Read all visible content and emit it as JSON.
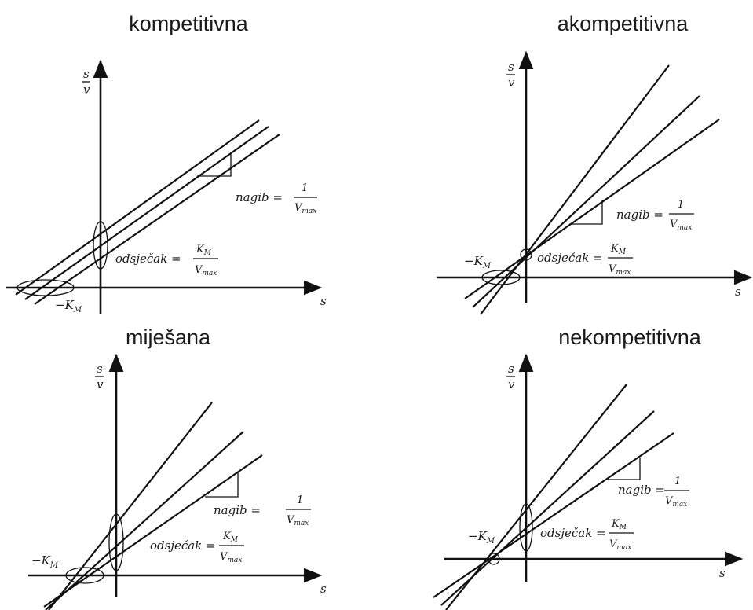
{
  "panels": [
    {
      "id": "competitive",
      "title": "kompetitivna"
    },
    {
      "id": "uncompetitive",
      "title": "akompetitivna"
    },
    {
      "id": "mixed",
      "title": "miješana"
    },
    {
      "id": "noncompetitive",
      "title": "nekompetitivna"
    }
  ],
  "labels": {
    "y_num": "s",
    "y_den": "v",
    "x_axis": "s",
    "km": "−K",
    "km_sub": "M",
    "slope": "nagib =",
    "intercept": "odsječak =",
    "one": "1",
    "vmax": "V",
    "vmax_sub": "max",
    "km_num": "K",
    "km_num_sub": "M"
  }
}
